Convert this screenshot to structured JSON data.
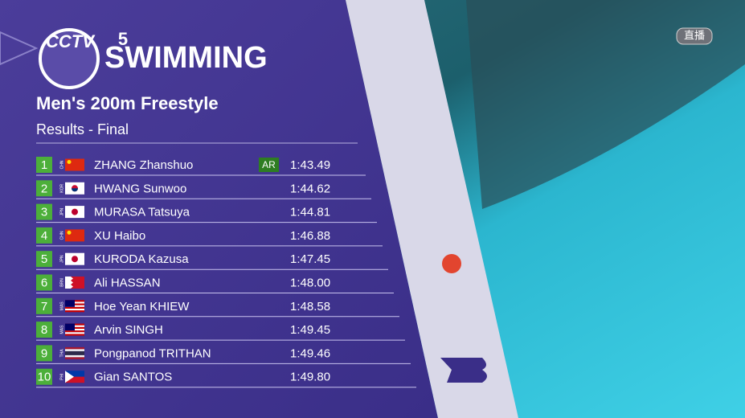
{
  "logo": {
    "brand": "CCTV",
    "channel": "5"
  },
  "header": {
    "sport": "SWIMMING",
    "event": "Men's 200m Freestyle",
    "stage": "Results - Final"
  },
  "live_badge": "直播",
  "results": [
    {
      "rank": "1",
      "country": "CHN",
      "name": "ZHANG Zhanshuo",
      "record": "AR",
      "time": "1:43.49"
    },
    {
      "rank": "2",
      "country": "KOR",
      "name": "HWANG Sunwoo",
      "time": "1:44.62"
    },
    {
      "rank": "3",
      "country": "JPN",
      "name": "MURASA Tatsuya",
      "time": "1:44.81"
    },
    {
      "rank": "4",
      "country": "CHN",
      "name": "XU Haibo",
      "time": "1:46.88"
    },
    {
      "rank": "5",
      "country": "JPN",
      "name": "KURODA Kazusa",
      "time": "1:47.45"
    },
    {
      "rank": "6",
      "country": "BRN",
      "name": "Ali HASSAN",
      "time": "1:48.00"
    },
    {
      "rank": "7",
      "country": "MAS",
      "name": "Hoe Yean KHIEW",
      "time": "1:48.58"
    },
    {
      "rank": "8",
      "country": "MAS",
      "name": "Arvin SINGH",
      "time": "1:49.45"
    },
    {
      "rank": "9",
      "country": "THA",
      "name": "Pongpanod TRITHAN",
      "time": "1:49.46"
    },
    {
      "rank": "10",
      "country": "PHI",
      "name": "Gian SANTOS",
      "time": "1:49.80"
    }
  ]
}
